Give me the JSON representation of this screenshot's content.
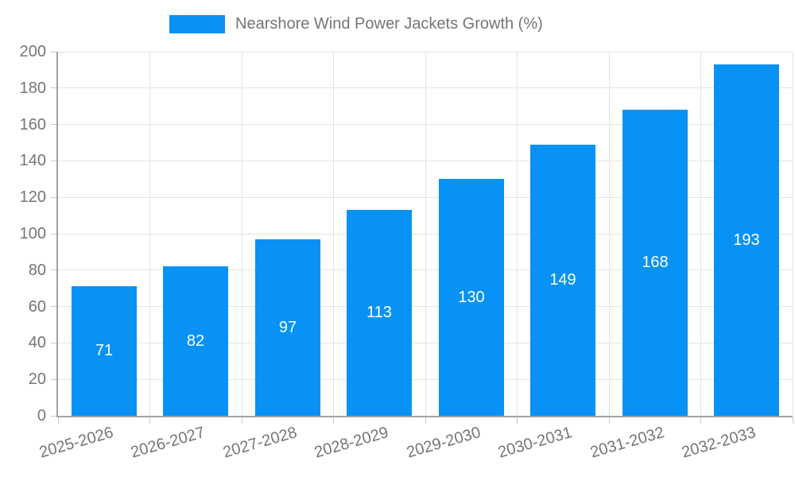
{
  "legend": {
    "label": "Nearshore Wind Power Jackets Growth (%)"
  },
  "chart_data": {
    "type": "bar",
    "title": "Nearshore Wind Power Jackets Growth (%)",
    "categories": [
      "2025-2026",
      "2026-2027",
      "2027-2028",
      "2028-2029",
      "2029-2030",
      "2030-2031",
      "2031-2032",
      "2032-2033"
    ],
    "values": [
      71,
      82,
      97,
      113,
      130,
      149,
      168,
      193
    ],
    "xlabel": "",
    "ylabel": "",
    "ylim": [
      0,
      200
    ],
    "yticks": [
      0,
      20,
      40,
      60,
      80,
      100,
      120,
      140,
      160,
      180,
      200
    ],
    "grid": true,
    "legend_position": "top",
    "bar_color": "#0892f5",
    "bar_label_color": "#ffffff",
    "axis_text_color": "#757575",
    "grid_color": "#e3e3e3",
    "axis_line_color": "#a3a3a3",
    "tick_color": "#c8c8c8"
  }
}
